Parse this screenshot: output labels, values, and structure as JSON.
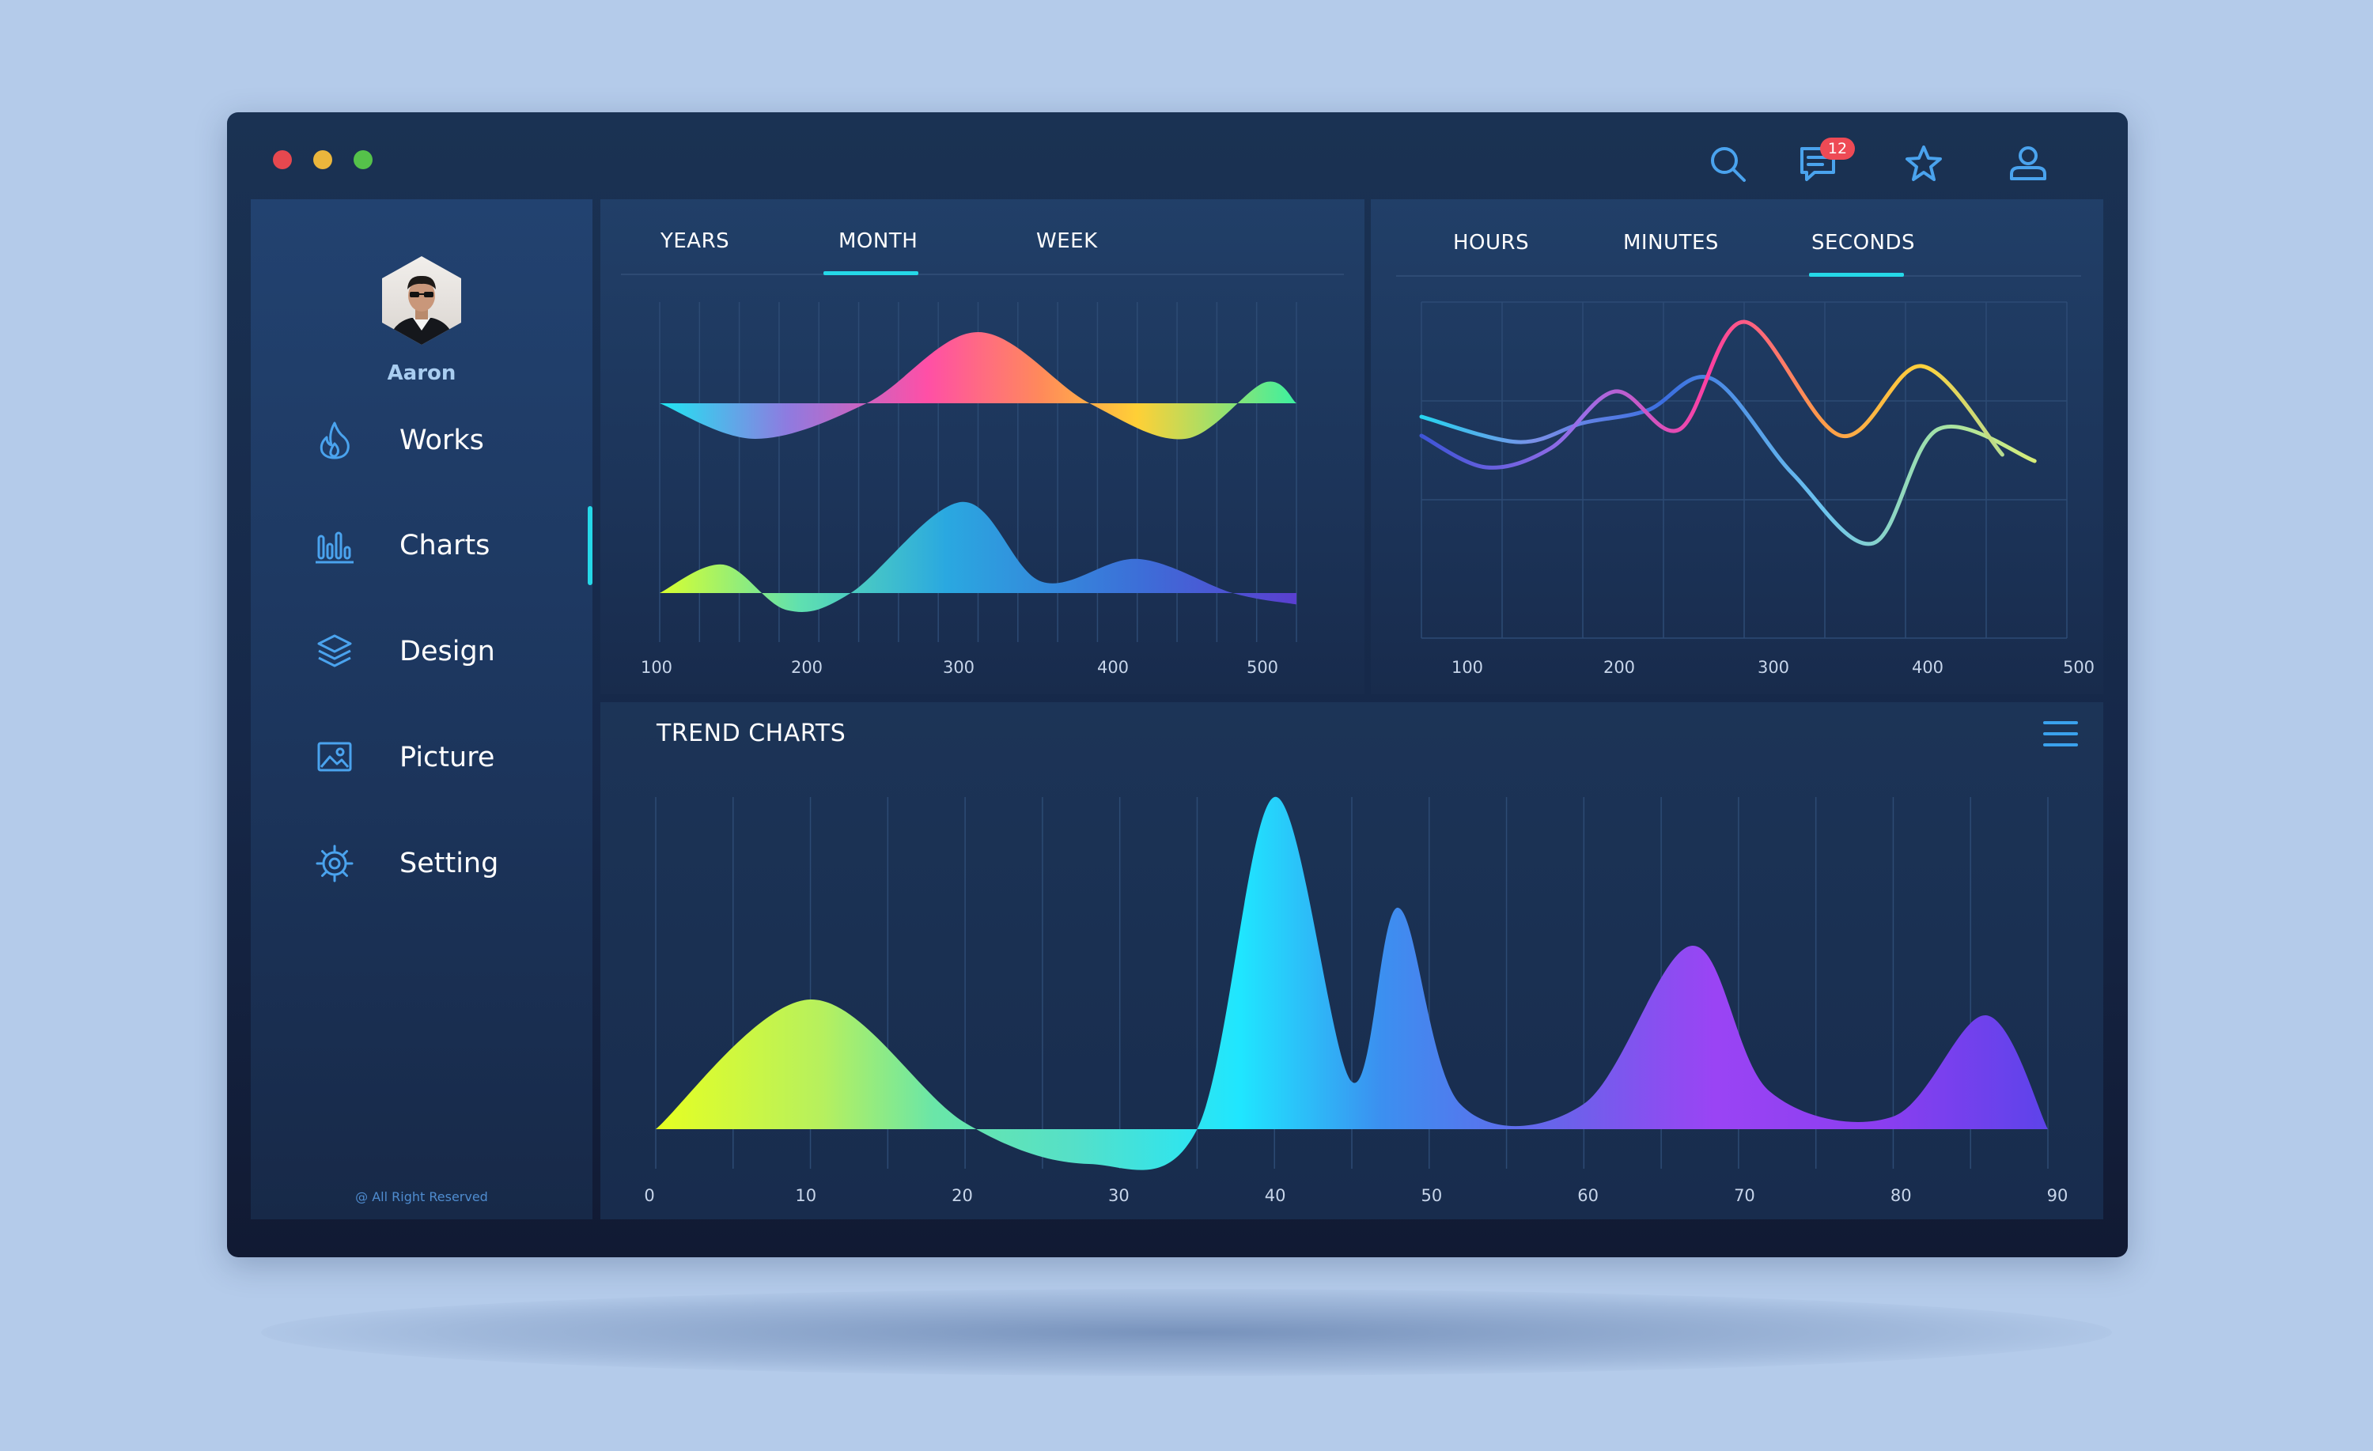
{
  "window": {
    "controls": [
      "close",
      "minimize",
      "maximize"
    ]
  },
  "topbar": {
    "icons": [
      "search-icon",
      "messages-icon",
      "star-icon",
      "user-icon"
    ],
    "notification_count": "12"
  },
  "sidebar": {
    "user_name": "Aaron",
    "items": [
      {
        "label": "Works",
        "icon": "flame-icon",
        "active": false
      },
      {
        "label": "Charts",
        "icon": "bar-chart-icon",
        "active": true
      },
      {
        "label": "Design",
        "icon": "layers-icon",
        "active": false
      },
      {
        "label": "Picture",
        "icon": "picture-icon",
        "active": false
      },
      {
        "label": "Setting",
        "icon": "gear-icon",
        "active": false
      }
    ],
    "footer": "@ All Right Reserved"
  },
  "panel_left": {
    "tabs": [
      "YEARS",
      "MONTH",
      "WEEK"
    ],
    "active_tab": "MONTH",
    "x_labels": [
      "100",
      "200",
      "300",
      "400",
      "500"
    ]
  },
  "panel_right": {
    "tabs": [
      "HOURS",
      "MINUTES",
      "SECONDS"
    ],
    "active_tab": "SECONDS",
    "x_labels": [
      "100",
      "200",
      "300",
      "400",
      "500"
    ]
  },
  "trend": {
    "title": "TREND CHARTS",
    "menu_icon": "hamburger-menu-icon",
    "x_labels": [
      "0",
      "10",
      "20",
      "30",
      "40",
      "50",
      "60",
      "70",
      "80",
      "90"
    ]
  },
  "colors": {
    "accent": "#25d8e8",
    "icon_blue": "#4aa3ee",
    "badge": "#ee4a55",
    "background": "#b4cbea"
  },
  "chart_data": [
    {
      "type": "area",
      "series": [
        {
          "x": [
            100,
            160,
            230,
            300,
            370,
            430,
            480,
            500
          ],
          "values": [
            0,
            -0.6,
            0,
            1.2,
            0,
            -0.6,
            0.35,
            0
          ]
        },
        {
          "x": [
            100,
            140,
            180,
            220,
            290,
            340,
            400,
            460,
            500
          ],
          "values": [
            0,
            0.5,
            -0.3,
            0,
            1.6,
            0.2,
            0.6,
            0,
            -0.2
          ]
        }
      ],
      "xlim": [
        100,
        500
      ]
    },
    {
      "type": "line",
      "series": [
        {
          "x": [
            100,
            160,
            200,
            240,
            280,
            330,
            380,
            420,
            480
          ],
          "values": [
            3.5,
            3.1,
            3.4,
            3.6,
            4.1,
            2.6,
            1.5,
            3.3,
            2.8
          ]
        },
        {
          "x": [
            100,
            140,
            180,
            220,
            260,
            300,
            360,
            410,
            460
          ],
          "values": [
            3.2,
            2.7,
            3.0,
            3.9,
            3.3,
            5.0,
            3.2,
            4.3,
            2.9
          ]
        }
      ],
      "xlim": [
        100,
        500
      ]
    },
    {
      "type": "area",
      "x": [
        0,
        10,
        20,
        28,
        35,
        40,
        45,
        48,
        52,
        60,
        67,
        72,
        80,
        86,
        90
      ],
      "values": [
        0,
        4.1,
        0.2,
        -1.1,
        0,
        10.5,
        1.5,
        7.0,
        0.8,
        0.8,
        5.8,
        1.2,
        0.4,
        3.6,
        0
      ],
      "xlim": [
        0,
        90
      ]
    }
  ]
}
